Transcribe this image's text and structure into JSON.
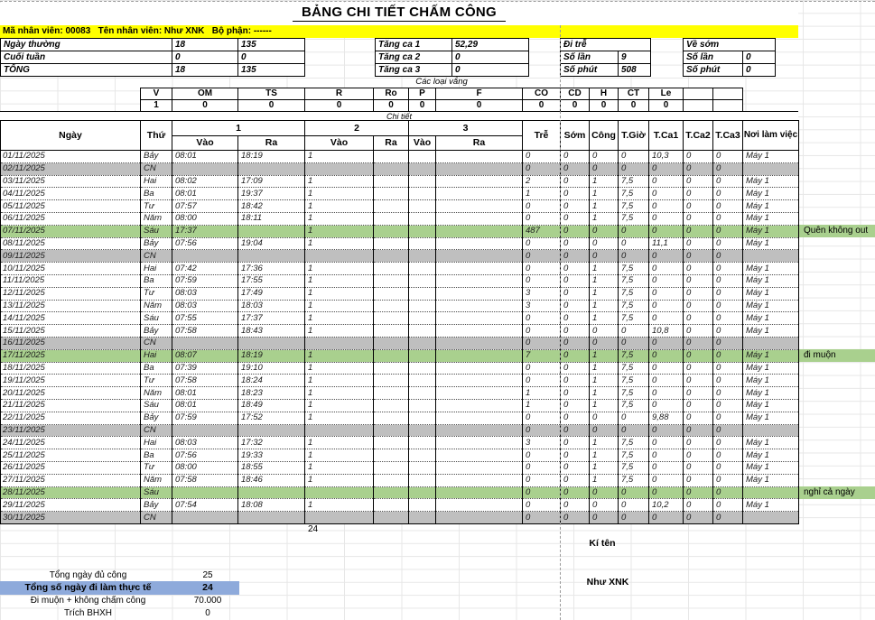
{
  "title": "BẢNG CHI TIẾT CHẤM CÔNG",
  "banner": "Mã nhân viên: 00083   Tên nhân viên: Như XNK   Bộ phận: ------",
  "colors": {
    "weekend_gray": "#bfbfbf",
    "highlight_green": "#a9d08e",
    "highlight_blue": "#8eaadb",
    "banner_yellow": "#ffff00"
  },
  "summary": {
    "rows": [
      {
        "label": "Ngày thường",
        "days": "18",
        "hours": "135"
      },
      {
        "label": "Cuối tuần",
        "days": "0",
        "hours": "0"
      },
      {
        "label": "TỔNG",
        "days": "18",
        "hours": "135"
      }
    ]
  },
  "overtime": {
    "rows": [
      {
        "label": "Tăng ca 1",
        "value": "52,29"
      },
      {
        "label": "Tăng ca 2",
        "value": "0"
      },
      {
        "label": "Tăng ca 3",
        "value": "0"
      }
    ]
  },
  "late": {
    "title": "Đi trễ",
    "count_label": "Số lần",
    "count": "9",
    "minutes_label": "Số phút",
    "minutes": "508"
  },
  "early": {
    "title": "Về sớm",
    "count_label": "Số lần",
    "count": "0",
    "minutes_label": "Số phút",
    "minutes": "0"
  },
  "absence": {
    "title": "Các loại vắng",
    "columns": [
      {
        "code": "V",
        "value": "1"
      },
      {
        "code": "OM",
        "value": "0"
      },
      {
        "code": "TS",
        "value": "0"
      },
      {
        "code": "R",
        "value": "0"
      },
      {
        "code": "Ro",
        "value": "0"
      },
      {
        "code": "P",
        "value": "0"
      },
      {
        "code": "F",
        "value": "0"
      },
      {
        "code": "CO",
        "value": "0"
      },
      {
        "code": "CD",
        "value": "0"
      },
      {
        "code": "H",
        "value": "0"
      },
      {
        "code": "CT",
        "value": "0"
      },
      {
        "code": "Le",
        "value": "0"
      },
      {
        "code": "",
        "value": ""
      },
      {
        "code": "",
        "value": ""
      }
    ]
  },
  "detail": {
    "section_title": "Chi tiết",
    "header": {
      "date": "Ngày",
      "day": "Thứ",
      "g1": "1",
      "g2": "2",
      "g3": "3",
      "in": "Vào",
      "out": "Ra",
      "late": "Trễ",
      "early": "Sớm",
      "work": "Công",
      "hours": "T.Giờ",
      "ot1": "T.Ca1",
      "ot2": "T.Ca2",
      "ot3": "T.Ca3",
      "location": "Nơi làm việc"
    },
    "total_marker": "24",
    "rows": [
      {
        "date": "01/11/2025",
        "day": "Bảy",
        "v1": "08:01",
        "r1": "18:19",
        "v2": "1",
        "r2": "",
        "v3": "",
        "r3": "",
        "late": "0",
        "early": "0",
        "work": "0",
        "hours": "0",
        "ot1": "10,3",
        "ot2": "0",
        "ot3": "0",
        "loc": "Máy 1",
        "note": "",
        "type": "normal"
      },
      {
        "date": "02/11/2025",
        "day": "CN",
        "v1": "",
        "r1": "",
        "v2": "",
        "r2": "",
        "v3": "",
        "r3": "",
        "late": "0",
        "early": "0",
        "work": "0",
        "hours": "0",
        "ot1": "0",
        "ot2": "0",
        "ot3": "0",
        "loc": "",
        "note": "",
        "type": "sunday"
      },
      {
        "date": "03/11/2025",
        "day": "Hai",
        "v1": "08:02",
        "r1": "17:09",
        "v2": "1",
        "r2": "",
        "v3": "",
        "r3": "",
        "late": "2",
        "early": "0",
        "work": "1",
        "hours": "7,5",
        "ot1": "0",
        "ot2": "0",
        "ot3": "0",
        "loc": "Máy 1",
        "note": "",
        "type": "normal"
      },
      {
        "date": "04/11/2025",
        "day": "Ba",
        "v1": "08:01",
        "r1": "19:37",
        "v2": "1",
        "r2": "",
        "v3": "",
        "r3": "",
        "late": "1",
        "early": "0",
        "work": "1",
        "hours": "7,5",
        "ot1": "0",
        "ot2": "0",
        "ot3": "0",
        "loc": "Máy 1",
        "note": "",
        "type": "normal"
      },
      {
        "date": "05/11/2025",
        "day": "Tư",
        "v1": "07:57",
        "r1": "18:42",
        "v2": "1",
        "r2": "",
        "v3": "",
        "r3": "",
        "late": "0",
        "early": "0",
        "work": "1",
        "hours": "7,5",
        "ot1": "0",
        "ot2": "0",
        "ot3": "0",
        "loc": "Máy 1",
        "note": "",
        "type": "normal"
      },
      {
        "date": "06/11/2025",
        "day": "Năm",
        "v1": "08:00",
        "r1": "18:11",
        "v2": "1",
        "r2": "",
        "v3": "",
        "r3": "",
        "late": "0",
        "early": "0",
        "work": "1",
        "hours": "7,5",
        "ot1": "0",
        "ot2": "0",
        "ot3": "0",
        "loc": "Máy 1",
        "note": "",
        "type": "normal"
      },
      {
        "date": "07/11/2025",
        "day": "Sáu",
        "v1": "17:37",
        "r1": "",
        "v2": "1",
        "r2": "",
        "v3": "",
        "r3": "",
        "late": "487",
        "early": "0",
        "work": "0",
        "hours": "0",
        "ot1": "0",
        "ot2": "0",
        "ot3": "0",
        "loc": "Máy 1",
        "note": "Quên không out",
        "type": "green"
      },
      {
        "date": "08/11/2025",
        "day": "Bảy",
        "v1": "07:56",
        "r1": "19:04",
        "v2": "1",
        "r2": "",
        "v3": "",
        "r3": "",
        "late": "0",
        "early": "0",
        "work": "0",
        "hours": "0",
        "ot1": "11,1",
        "ot2": "0",
        "ot3": "0",
        "loc": "Máy 1",
        "note": "",
        "type": "normal"
      },
      {
        "date": "09/11/2025",
        "day": "CN",
        "v1": "",
        "r1": "",
        "v2": "",
        "r2": "",
        "v3": "",
        "r3": "",
        "late": "0",
        "early": "0",
        "work": "0",
        "hours": "0",
        "ot1": "0",
        "ot2": "0",
        "ot3": "0",
        "loc": "",
        "note": "",
        "type": "sunday"
      },
      {
        "date": "10/11/2025",
        "day": "Hai",
        "v1": "07:42",
        "r1": "17:36",
        "v2": "1",
        "r2": "",
        "v3": "",
        "r3": "",
        "late": "0",
        "early": "0",
        "work": "1",
        "hours": "7,5",
        "ot1": "0",
        "ot2": "0",
        "ot3": "0",
        "loc": "Máy 1",
        "note": "",
        "type": "normal"
      },
      {
        "date": "11/11/2025",
        "day": "Ba",
        "v1": "07:59",
        "r1": "17:55",
        "v2": "1",
        "r2": "",
        "v3": "",
        "r3": "",
        "late": "0",
        "early": "0",
        "work": "1",
        "hours": "7,5",
        "ot1": "0",
        "ot2": "0",
        "ot3": "0",
        "loc": "Máy 1",
        "note": "",
        "type": "normal"
      },
      {
        "date": "12/11/2025",
        "day": "Tư",
        "v1": "08:03",
        "r1": "17:49",
        "v2": "1",
        "r2": "",
        "v3": "",
        "r3": "",
        "late": "3",
        "early": "0",
        "work": "1",
        "hours": "7,5",
        "ot1": "0",
        "ot2": "0",
        "ot3": "0",
        "loc": "Máy 1",
        "note": "",
        "type": "normal"
      },
      {
        "date": "13/11/2025",
        "day": "Năm",
        "v1": "08:03",
        "r1": "18:03",
        "v2": "1",
        "r2": "",
        "v3": "",
        "r3": "",
        "late": "3",
        "early": "0",
        "work": "1",
        "hours": "7,5",
        "ot1": "0",
        "ot2": "0",
        "ot3": "0",
        "loc": "Máy 1",
        "note": "",
        "type": "normal"
      },
      {
        "date": "14/11/2025",
        "day": "Sáu",
        "v1": "07:55",
        "r1": "17:37",
        "v2": "1",
        "r2": "",
        "v3": "",
        "r3": "",
        "late": "0",
        "early": "0",
        "work": "1",
        "hours": "7,5",
        "ot1": "0",
        "ot2": "0",
        "ot3": "0",
        "loc": "Máy 1",
        "note": "",
        "type": "normal"
      },
      {
        "date": "15/11/2025",
        "day": "Bảy",
        "v1": "07:58",
        "r1": "18:43",
        "v2": "1",
        "r2": "",
        "v3": "",
        "r3": "",
        "late": "0",
        "early": "0",
        "work": "0",
        "hours": "0",
        "ot1": "10,8",
        "ot2": "0",
        "ot3": "0",
        "loc": "Máy 1",
        "note": "",
        "type": "normal"
      },
      {
        "date": "16/11/2025",
        "day": "CN",
        "v1": "",
        "r1": "",
        "v2": "",
        "r2": "",
        "v3": "",
        "r3": "",
        "late": "0",
        "early": "0",
        "work": "0",
        "hours": "0",
        "ot1": "0",
        "ot2": "0",
        "ot3": "0",
        "loc": "",
        "note": "",
        "type": "sunday"
      },
      {
        "date": "17/11/2025",
        "day": "Hai",
        "v1": "08:07",
        "r1": "18:19",
        "v2": "1",
        "r2": "",
        "v3": "",
        "r3": "",
        "late": "7",
        "early": "0",
        "work": "1",
        "hours": "7,5",
        "ot1": "0",
        "ot2": "0",
        "ot3": "0",
        "loc": "Máy 1",
        "note": "đi muộn",
        "type": "green"
      },
      {
        "date": "18/11/2025",
        "day": "Ba",
        "v1": "07:39",
        "r1": "19:10",
        "v2": "1",
        "r2": "",
        "v3": "",
        "r3": "",
        "late": "0",
        "early": "0",
        "work": "1",
        "hours": "7,5",
        "ot1": "0",
        "ot2": "0",
        "ot3": "0",
        "loc": "Máy 1",
        "note": "",
        "type": "normal"
      },
      {
        "date": "19/11/2025",
        "day": "Tư",
        "v1": "07:58",
        "r1": "18:24",
        "v2": "1",
        "r2": "",
        "v3": "",
        "r3": "",
        "late": "0",
        "early": "0",
        "work": "1",
        "hours": "7,5",
        "ot1": "0",
        "ot2": "0",
        "ot3": "0",
        "loc": "Máy 1",
        "note": "",
        "type": "normal"
      },
      {
        "date": "20/11/2025",
        "day": "Năm",
        "v1": "08:01",
        "r1": "18:23",
        "v2": "1",
        "r2": "",
        "v3": "",
        "r3": "",
        "late": "1",
        "early": "0",
        "work": "1",
        "hours": "7,5",
        "ot1": "0",
        "ot2": "0",
        "ot3": "0",
        "loc": "Máy 1",
        "note": "",
        "type": "normal"
      },
      {
        "date": "21/11/2025",
        "day": "Sáu",
        "v1": "08:01",
        "r1": "18:49",
        "v2": "1",
        "r2": "",
        "v3": "",
        "r3": "",
        "late": "1",
        "early": "0",
        "work": "1",
        "hours": "7,5",
        "ot1": "0",
        "ot2": "0",
        "ot3": "0",
        "loc": "Máy 1",
        "note": "",
        "type": "normal"
      },
      {
        "date": "22/11/2025",
        "day": "Bảy",
        "v1": "07:59",
        "r1": "17:52",
        "v2": "1",
        "r2": "",
        "v3": "",
        "r3": "",
        "late": "0",
        "early": "0",
        "work": "0",
        "hours": "0",
        "ot1": "9,88",
        "ot2": "0",
        "ot3": "0",
        "loc": "Máy 1",
        "note": "",
        "type": "normal"
      },
      {
        "date": "23/11/2025",
        "day": "CN",
        "v1": "",
        "r1": "",
        "v2": "",
        "r2": "",
        "v3": "",
        "r3": "",
        "late": "0",
        "early": "0",
        "work": "0",
        "hours": "0",
        "ot1": "0",
        "ot2": "0",
        "ot3": "0",
        "loc": "",
        "note": "",
        "type": "sunday"
      },
      {
        "date": "24/11/2025",
        "day": "Hai",
        "v1": "08:03",
        "r1": "17:32",
        "v2": "1",
        "r2": "",
        "v3": "",
        "r3": "",
        "late": "3",
        "early": "0",
        "work": "1",
        "hours": "7,5",
        "ot1": "0",
        "ot2": "0",
        "ot3": "0",
        "loc": "Máy 1",
        "note": "",
        "type": "normal"
      },
      {
        "date": "25/11/2025",
        "day": "Ba",
        "v1": "07:56",
        "r1": "19:33",
        "v2": "1",
        "r2": "",
        "v3": "",
        "r3": "",
        "late": "0",
        "early": "0",
        "work": "1",
        "hours": "7,5",
        "ot1": "0",
        "ot2": "0",
        "ot3": "0",
        "loc": "Máy 1",
        "note": "",
        "type": "normal"
      },
      {
        "date": "26/11/2025",
        "day": "Tư",
        "v1": "08:00",
        "r1": "18:55",
        "v2": "1",
        "r2": "",
        "v3": "",
        "r3": "",
        "late": "0",
        "early": "0",
        "work": "1",
        "hours": "7,5",
        "ot1": "0",
        "ot2": "0",
        "ot3": "0",
        "loc": "Máy 1",
        "note": "",
        "type": "normal"
      },
      {
        "date": "27/11/2025",
        "day": "Năm",
        "v1": "07:58",
        "r1": "18:46",
        "v2": "1",
        "r2": "",
        "v3": "",
        "r3": "",
        "late": "0",
        "early": "0",
        "work": "1",
        "hours": "7,5",
        "ot1": "0",
        "ot2": "0",
        "ot3": "0",
        "loc": "Máy 1",
        "note": "",
        "type": "normal"
      },
      {
        "date": "28/11/2025",
        "day": "Sáu",
        "v1": "",
        "r1": "",
        "v2": "",
        "r2": "",
        "v3": "",
        "r3": "",
        "late": "0",
        "early": "0",
        "work": "0",
        "hours": "0",
        "ot1": "0",
        "ot2": "0",
        "ot3": "0",
        "loc": "",
        "note": "nghỉ cả ngày",
        "type": "green"
      },
      {
        "date": "29/11/2025",
        "day": "Bảy",
        "v1": "07:54",
        "r1": "18:08",
        "v2": "1",
        "r2": "",
        "v3": "",
        "r3": "",
        "late": "0",
        "early": "0",
        "work": "0",
        "hours": "0",
        "ot1": "10,2",
        "ot2": "0",
        "ot3": "0",
        "loc": "Máy 1",
        "note": "",
        "type": "normal"
      },
      {
        "date": "30/11/2025",
        "day": "CN",
        "v1": "",
        "r1": "",
        "v2": "",
        "r2": "",
        "v3": "",
        "r3": "",
        "late": "0",
        "early": "0",
        "work": "0",
        "hours": "0",
        "ot1": "0",
        "ot2": "0",
        "ot3": "0",
        "loc": "",
        "note": "",
        "type": "sunday"
      }
    ]
  },
  "signature": {
    "title": "Kí tên",
    "name": "Như XNK"
  },
  "totals": {
    "rows": [
      {
        "label": "Tổng ngày đủ công",
        "value": "25",
        "highlight": false
      },
      {
        "label": "Tổng số ngày đi làm thực tế",
        "value": "24",
        "highlight": true
      },
      {
        "label": "Đi muộn + không chấm công",
        "value": "70.000",
        "highlight": false
      },
      {
        "label": "Trích BHXH",
        "value": "0",
        "highlight": false
      }
    ]
  }
}
